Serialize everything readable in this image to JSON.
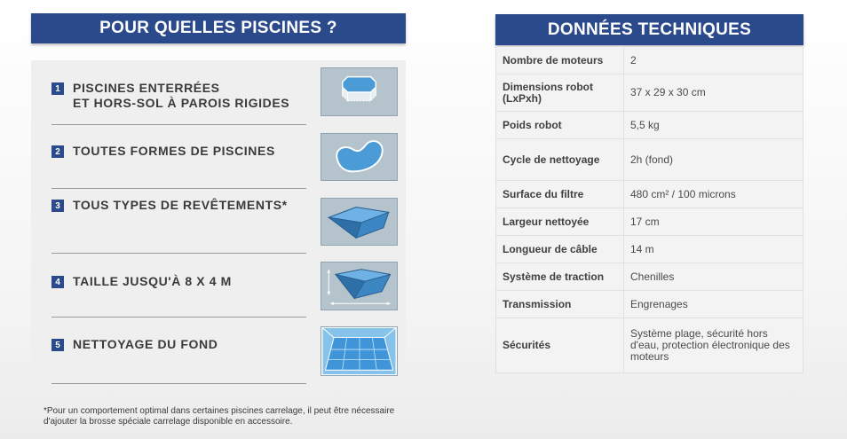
{
  "left": {
    "title": "POUR QUELLES PISCINES ?",
    "features": [
      {
        "num": "1",
        "label": "PISCINES ENTERRÉES\nET HORS-SOL À PAROIS RIGIDES",
        "icon": "octagonal-pool-icon"
      },
      {
        "num": "2",
        "label": "TOUTES FORMES DE PISCINES",
        "icon": "freeform-pool-icon"
      },
      {
        "num": "3",
        "label": "TOUS TYPES DE REVÊTEMENTS*",
        "icon": "pool-liner-icon"
      },
      {
        "num": "4",
        "label": "TAILLE JUSQU'À 8 X 4 M",
        "icon": "pool-dimensions-icon"
      },
      {
        "num": "5",
        "label": "NETTOYAGE DU FOND",
        "icon": "pool-floor-icon"
      }
    ],
    "footnote": "*Pour un comportement optimal dans certaines piscines carrelage, il peut être nécessaire d'ajouter la brosse spéciale carrelage disponible en accessoire."
  },
  "right": {
    "title": "DONNÉES TECHNIQUES",
    "rows": [
      {
        "key": "Nombre de moteurs",
        "value": "2"
      },
      {
        "key": "Dimensions robot (LxPxh)",
        "value": "37 x 29 x 30 cm"
      },
      {
        "key": "Poids robot",
        "value": "5,5 kg"
      },
      {
        "key": "Cycle de nettoyage",
        "value": "2h (fond)"
      },
      {
        "key": "Surface du filtre",
        "value": "480 cm² / 100 microns"
      },
      {
        "key": "Largeur nettoyée",
        "value": "17 cm"
      },
      {
        "key": "Longueur de câble",
        "value": "14 m"
      },
      {
        "key": "Système de traction",
        "value": "Chenilles"
      },
      {
        "key": "Transmission",
        "value": "Engrenages"
      },
      {
        "key": "Sécurités",
        "value": "Système plage, sécurité hors d'eau, protection électronique des moteurs"
      }
    ]
  },
  "colors": {
    "header": "#2b4a8c",
    "pool_water": "#4a9bd6",
    "thumb_bg": "#b5c3cc"
  }
}
